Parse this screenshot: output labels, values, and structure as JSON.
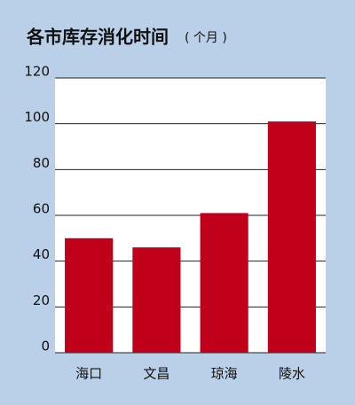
{
  "chart_data": {
    "type": "bar",
    "title": "各市库存消化时间",
    "subtitle": "( 个月 )",
    "categories": [
      "海口",
      "文昌",
      "琼海",
      "陵水"
    ],
    "values": [
      50,
      46,
      61,
      101
    ],
    "color": "#c0001a",
    "ylim": [
      0,
      120
    ],
    "yticks": [
      0,
      20,
      40,
      60,
      80,
      100,
      120
    ],
    "grid": true
  }
}
